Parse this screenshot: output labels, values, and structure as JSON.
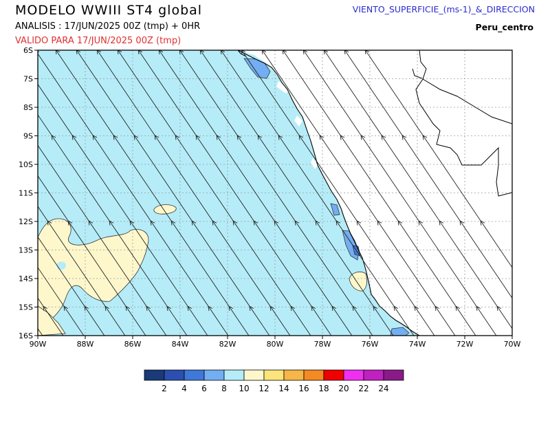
{
  "header": {
    "title": "MODELO WWIII ST4 global",
    "analysis": "ANALISIS : 17/JUN/2025 00Z  (tmp) + 0HR",
    "valid": "VALIDO PARA  17/JUN/2025 00Z  (tmp)",
    "variable": "VIENTO_SUPERFICIE_(ms-1)_&_DIRECCION",
    "region": "Peru_centro"
  },
  "map": {
    "lon_range": [
      -90,
      -70
    ],
    "lat_range": [
      -16,
      -6
    ],
    "x_ticks": [
      {
        "value": -90,
        "label": "90W"
      },
      {
        "value": -88,
        "label": "88W"
      },
      {
        "value": -86,
        "label": "86W"
      },
      {
        "value": -84,
        "label": "84W"
      },
      {
        "value": -82,
        "label": "82W"
      },
      {
        "value": -80,
        "label": "80W"
      },
      {
        "value": -78,
        "label": "78W"
      },
      {
        "value": -76,
        "label": "76W"
      },
      {
        "value": -74,
        "label": "74W"
      },
      {
        "value": -72,
        "label": "72W"
      },
      {
        "value": -70,
        "label": "70W"
      }
    ],
    "y_ticks": [
      {
        "value": -6,
        "label": "6S"
      },
      {
        "value": -7,
        "label": "7S"
      },
      {
        "value": -8,
        "label": "8S"
      },
      {
        "value": -9,
        "label": "9S"
      },
      {
        "value": -10,
        "label": "10S"
      },
      {
        "value": -11,
        "label": "11S"
      },
      {
        "value": -12,
        "label": "12S"
      },
      {
        "value": -13,
        "label": "13S"
      },
      {
        "value": -14,
        "label": "14S"
      },
      {
        "value": -15,
        "label": "15S"
      },
      {
        "value": -16,
        "label": "16S"
      }
    ],
    "grid": true
  },
  "colorbar": {
    "colors": [
      "#1a3a78",
      "#2b4fb0",
      "#3f78d8",
      "#73aef2",
      "#b5ecf8",
      "#fef7cc",
      "#fbe57a",
      "#f6b648",
      "#f48a22",
      "#f00000",
      "#f030f0",
      "#c020c0",
      "#8a1a8a"
    ],
    "labels": [
      "2",
      "4",
      "6",
      "8",
      "10",
      "12",
      "14",
      "16",
      "18",
      "20",
      "22",
      "24"
    ]
  },
  "colors": {
    "ocean_light": "#b5ecf8",
    "ocean_mid": "#73aef2",
    "ocean_dark": "#3f78d8",
    "calm": "#fef7cc",
    "land": "#ffffff"
  }
}
